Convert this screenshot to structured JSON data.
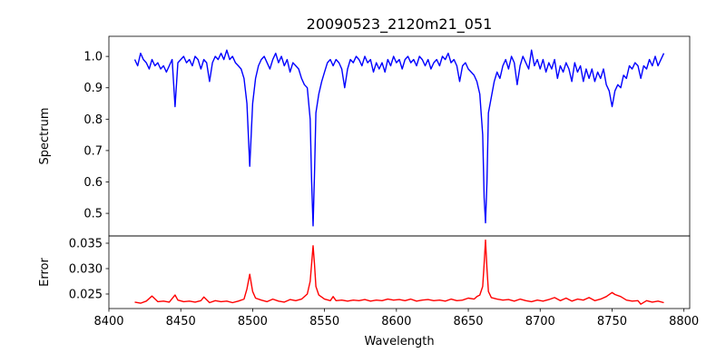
{
  "chart_data": [
    {
      "type": "line",
      "title": "20090523_2120m21_051",
      "xlabel": "",
      "ylabel": "Spectrum",
      "xlim": [
        8400,
        8804
      ],
      "ylim": [
        0.428,
        1.064
      ],
      "yticks": [
        0.5,
        0.6,
        0.7,
        0.8,
        0.9,
        1.0
      ],
      "ytick_labels": [
        "0.5",
        "0.6",
        "0.7",
        "0.8",
        "0.9",
        "1.0"
      ],
      "grid": false,
      "series": [
        {
          "name": "spectrum",
          "color": "#0000ff",
          "x": [
            8418,
            8420,
            8422,
            8424,
            8426,
            8428,
            8430,
            8432,
            8434,
            8436,
            8438,
            8440,
            8442,
            8444,
            8446,
            8448,
            8450,
            8452,
            8454,
            8456,
            8458,
            8460,
            8462,
            8464,
            8466,
            8468,
            8470,
            8472,
            8474,
            8476,
            8478,
            8480,
            8482,
            8484,
            8486,
            8488,
            8490,
            8492,
            8494,
            8496,
            8498,
            8500,
            8502,
            8504,
            8506,
            8508,
            8510,
            8512,
            8514,
            8516,
            8518,
            8520,
            8522,
            8524,
            8526,
            8528,
            8530,
            8532,
            8534,
            8536,
            8538,
            8540,
            8541,
            8542,
            8543,
            8544,
            8546,
            8548,
            8550,
            8552,
            8554,
            8556,
            8558,
            8560,
            8562,
            8564,
            8566,
            8568,
            8570,
            8572,
            8574,
            8576,
            8578,
            8580,
            8582,
            8584,
            8586,
            8588,
            8590,
            8592,
            8594,
            8596,
            8598,
            8600,
            8602,
            8604,
            8606,
            8608,
            8610,
            8612,
            8614,
            8616,
            8618,
            8620,
            8622,
            8624,
            8626,
            8628,
            8630,
            8632,
            8634,
            8636,
            8638,
            8640,
            8642,
            8644,
            8646,
            8648,
            8650,
            8652,
            8654,
            8656,
            8658,
            8660,
            8661,
            8662,
            8663,
            8664,
            8666,
            8668,
            8670,
            8672,
            8674,
            8676,
            8678,
            8680,
            8682,
            8684,
            8686,
            8688,
            8690,
            8692,
            8694,
            8696,
            8698,
            8700,
            8702,
            8704,
            8706,
            8708,
            8710,
            8712,
            8714,
            8716,
            8718,
            8720,
            8722,
            8724,
            8726,
            8728,
            8730,
            8732,
            8734,
            8736,
            8738,
            8740,
            8742,
            8744,
            8746,
            8748,
            8750,
            8752,
            8754,
            8756,
            8758,
            8760,
            8762,
            8764,
            8766,
            8768,
            8770,
            8772,
            8774,
            8776,
            8778,
            8780,
            8782,
            8784,
            8786
          ],
          "y": [
            0.99,
            0.97,
            1.01,
            0.99,
            0.98,
            0.96,
            0.99,
            0.97,
            0.98,
            0.96,
            0.97,
            0.95,
            0.97,
            0.99,
            0.84,
            0.98,
            0.99,
            1.0,
            0.98,
            0.99,
            0.97,
            1.0,
            0.99,
            0.96,
            0.99,
            0.98,
            0.92,
            0.98,
            1.0,
            0.99,
            1.01,
            0.99,
            1.02,
            0.99,
            1.0,
            0.98,
            0.97,
            0.96,
            0.93,
            0.85,
            0.65,
            0.85,
            0.93,
            0.97,
            0.99,
            1.0,
            0.98,
            0.96,
            0.99,
            1.01,
            0.98,
            1.0,
            0.97,
            0.99,
            0.95,
            0.98,
            0.97,
            0.96,
            0.93,
            0.91,
            0.9,
            0.8,
            0.6,
            0.46,
            0.62,
            0.82,
            0.88,
            0.92,
            0.95,
            0.98,
            0.99,
            0.97,
            0.99,
            0.98,
            0.96,
            0.9,
            0.96,
            0.99,
            0.98,
            1.0,
            0.99,
            0.97,
            1.0,
            0.98,
            0.99,
            0.95,
            0.98,
            0.96,
            0.98,
            0.95,
            0.99,
            0.97,
            1.0,
            0.98,
            0.99,
            0.96,
            0.99,
            1.0,
            0.98,
            0.99,
            0.97,
            1.0,
            0.99,
            0.97,
            0.99,
            0.96,
            0.98,
            0.99,
            0.97,
            1.0,
            0.99,
            1.01,
            0.98,
            0.99,
            0.97,
            0.92,
            0.97,
            0.98,
            0.96,
            0.95,
            0.94,
            0.92,
            0.88,
            0.75,
            0.55,
            0.47,
            0.6,
            0.82,
            0.87,
            0.92,
            0.95,
            0.93,
            0.97,
            0.99,
            0.96,
            1.0,
            0.98,
            0.91,
            0.97,
            1.0,
            0.98,
            0.96,
            1.02,
            0.97,
            0.99,
            0.96,
            0.99,
            0.95,
            0.98,
            0.96,
            0.99,
            0.93,
            0.97,
            0.95,
            0.98,
            0.96,
            0.92,
            0.98,
            0.95,
            0.97,
            0.92,
            0.96,
            0.93,
            0.96,
            0.92,
            0.95,
            0.93,
            0.96,
            0.91,
            0.89,
            0.84,
            0.89,
            0.91,
            0.9,
            0.94,
            0.93,
            0.97,
            0.96,
            0.98,
            0.97,
            0.93,
            0.97,
            0.96,
            0.99,
            0.97,
            1.0,
            0.97,
            0.99,
            1.01
          ]
        }
      ]
    },
    {
      "type": "line",
      "xlabel": "Wavelength",
      "ylabel": "Error",
      "xlim": [
        8400,
        8804
      ],
      "ylim": [
        0.02214,
        0.03643
      ],
      "xticks": [
        8400,
        8450,
        8500,
        8550,
        8600,
        8650,
        8700,
        8750,
        8800
      ],
      "xtick_labels": [
        "8400",
        "8450",
        "8500",
        "8550",
        "8600",
        "8650",
        "8700",
        "8750",
        "8800"
      ],
      "yticks": [
        0.025,
        0.03,
        0.035
      ],
      "ytick_labels": [
        "0.025",
        "0.030",
        "0.035"
      ],
      "grid": false,
      "series": [
        {
          "name": "error",
          "color": "#ff0000",
          "x": [
            8418,
            8422,
            8426,
            8430,
            8434,
            8438,
            8442,
            8446,
            8448,
            8452,
            8456,
            8460,
            8464,
            8466,
            8470,
            8474,
            8478,
            8482,
            8486,
            8490,
            8494,
            8496,
            8498,
            8500,
            8502,
            8506,
            8510,
            8514,
            8518,
            8522,
            8526,
            8530,
            8534,
            8538,
            8540,
            8541,
            8542,
            8543,
            8544,
            8546,
            8550,
            8554,
            8556,
            8558,
            8562,
            8566,
            8570,
            8574,
            8578,
            8582,
            8586,
            8590,
            8594,
            8598,
            8602,
            8606,
            8610,
            8614,
            8618,
            8622,
            8626,
            8630,
            8634,
            8638,
            8642,
            8646,
            8650,
            8654,
            8656,
            8658,
            8660,
            8661,
            8662,
            8663,
            8664,
            8666,
            8670,
            8674,
            8678,
            8682,
            8686,
            8690,
            8694,
            8698,
            8702,
            8706,
            8710,
            8714,
            8718,
            8722,
            8726,
            8730,
            8734,
            8738,
            8742,
            8746,
            8750,
            8752,
            8756,
            8760,
            8764,
            8768,
            8770,
            8774,
            8778,
            8782,
            8786
          ],
          "y": [
            0.0234,
            0.0232,
            0.0236,
            0.0246,
            0.0235,
            0.0236,
            0.0234,
            0.0248,
            0.0238,
            0.0235,
            0.0236,
            0.0234,
            0.0237,
            0.0244,
            0.0233,
            0.0237,
            0.0235,
            0.0236,
            0.0233,
            0.0236,
            0.024,
            0.026,
            0.0289,
            0.0255,
            0.0242,
            0.0238,
            0.0235,
            0.024,
            0.0236,
            0.0234,
            0.0239,
            0.0237,
            0.024,
            0.025,
            0.0275,
            0.031,
            0.0345,
            0.031,
            0.0265,
            0.0248,
            0.024,
            0.0237,
            0.0245,
            0.0237,
            0.0238,
            0.0236,
            0.0238,
            0.0237,
            0.0239,
            0.0236,
            0.0238,
            0.0237,
            0.024,
            0.0238,
            0.0239,
            0.0237,
            0.024,
            0.0236,
            0.0238,
            0.0239,
            0.0237,
            0.0238,
            0.0236,
            0.024,
            0.0237,
            0.0238,
            0.0242,
            0.024,
            0.0245,
            0.0248,
            0.0265,
            0.031,
            0.0356,
            0.03,
            0.0255,
            0.0243,
            0.024,
            0.0238,
            0.0239,
            0.0236,
            0.024,
            0.0237,
            0.0235,
            0.0238,
            0.0236,
            0.0239,
            0.0243,
            0.0237,
            0.0242,
            0.0236,
            0.024,
            0.0238,
            0.0243,
            0.0237,
            0.024,
            0.0245,
            0.0253,
            0.0249,
            0.0245,
            0.0238,
            0.0236,
            0.0237,
            0.023,
            0.0237,
            0.0234,
            0.0236,
            0.0233
          ]
        }
      ]
    }
  ]
}
